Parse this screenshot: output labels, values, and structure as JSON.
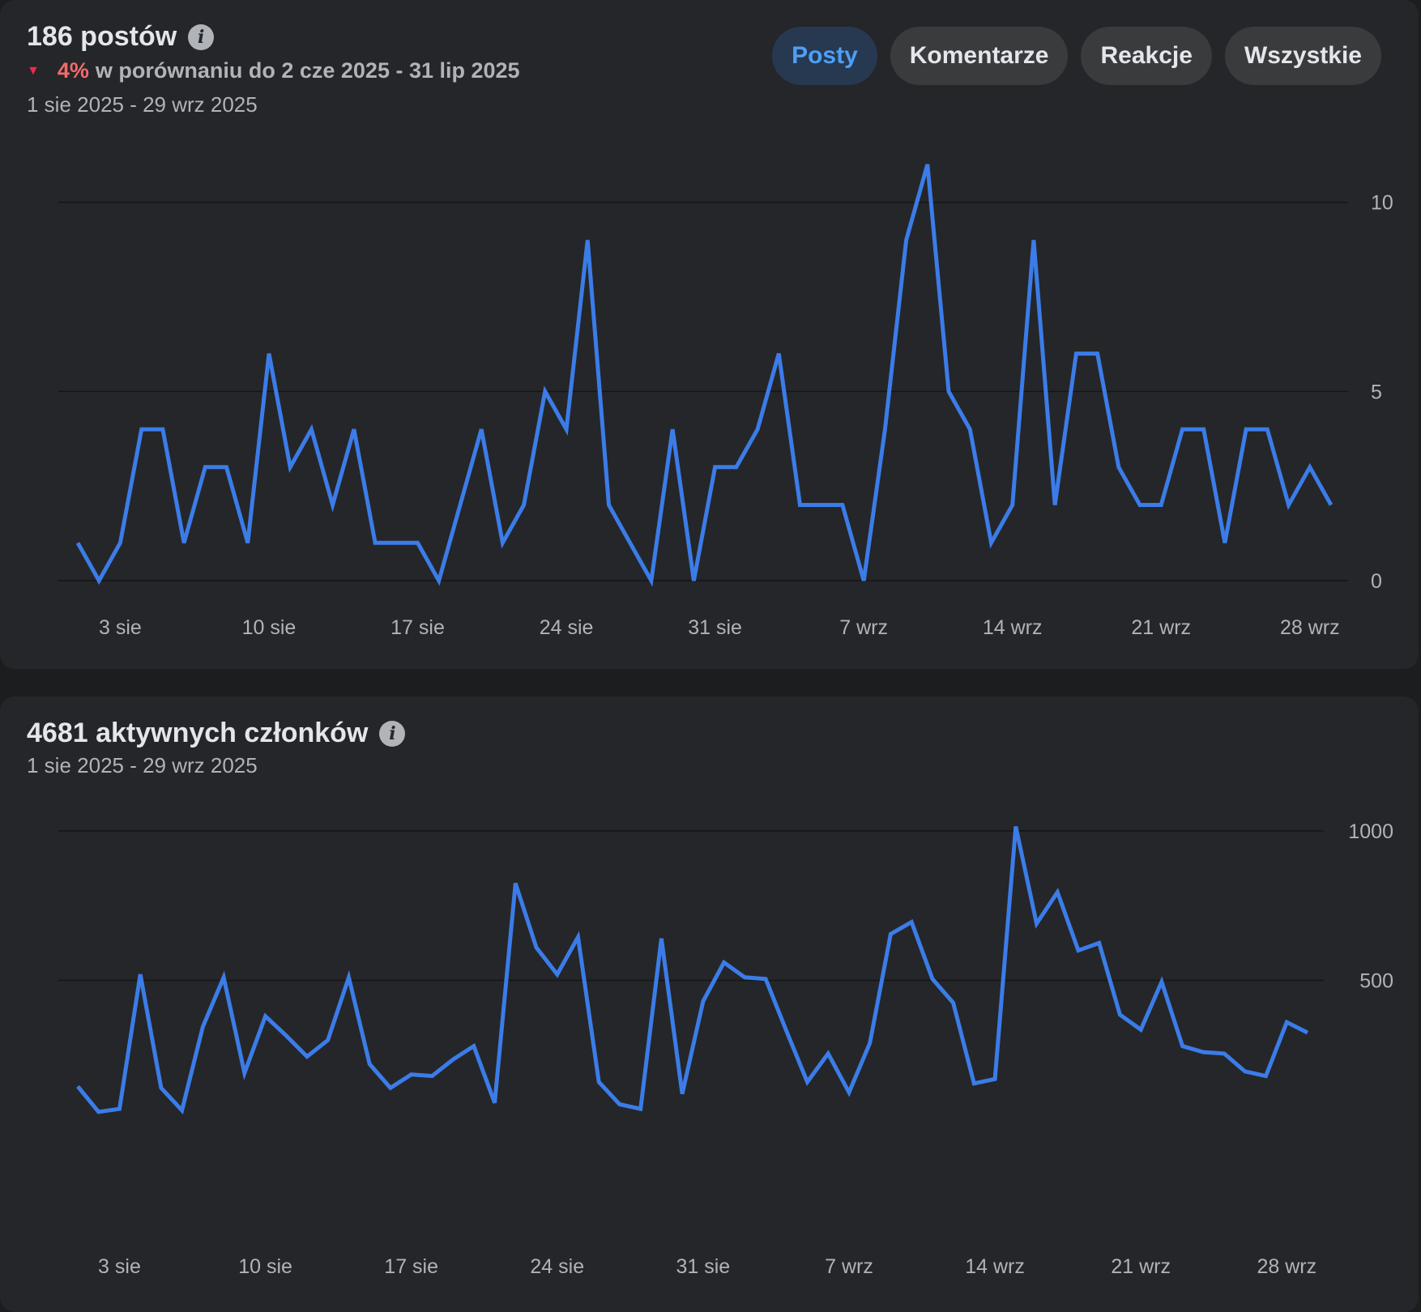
{
  "posts_card": {
    "title": "186 postów",
    "change_pct": "4%",
    "change_text": "w porównaniu do 2 cze 2025 - 31 lip 2025",
    "date_range": "1 sie 2025 - 29 wrz 2025",
    "tabs": [
      {
        "label": "Posty",
        "active": true
      },
      {
        "label": "Komentarze",
        "active": false
      },
      {
        "label": "Reakcje",
        "active": false
      },
      {
        "label": "Wszystkie",
        "active": false
      }
    ]
  },
  "members_card": {
    "title": "4681 aktywnych członków",
    "date_range": "1 sie 2025 - 29 wrz 2025"
  },
  "colors": {
    "line": "#3b7ce8",
    "active_tab_text": "#4e9ff5",
    "down_arrow": "#f02849"
  },
  "chart_data": [
    {
      "type": "line",
      "title": "186 postów",
      "x_start_label": "1 sie",
      "xticks": [
        {
          "label": "3 sie",
          "index": 2
        },
        {
          "label": "10 sie",
          "index": 9
        },
        {
          "label": "17 sie",
          "index": 16
        },
        {
          "label": "24 sie",
          "index": 23
        },
        {
          "label": "31 sie",
          "index": 30
        },
        {
          "label": "7 wrz",
          "index": 37
        },
        {
          "label": "14 wrz",
          "index": 44
        },
        {
          "label": "21 wrz",
          "index": 51
        },
        {
          "label": "28 wrz",
          "index": 58
        }
      ],
      "yticks": [
        0,
        5,
        10
      ],
      "ylim": [
        0,
        11
      ],
      "values": [
        1,
        0,
        1,
        4,
        4,
        1,
        3,
        3,
        1,
        6,
        3,
        4,
        2,
        4,
        1,
        1,
        1,
        0,
        2,
        4,
        1,
        2,
        5,
        4,
        9,
        2,
        1,
        0,
        4,
        0,
        3,
        3,
        4,
        6,
        2,
        2,
        2,
        0,
        4,
        9,
        11,
        5,
        4,
        1,
        2,
        9,
        2,
        6,
        6,
        3,
        2,
        2,
        4,
        4,
        1,
        4,
        4,
        2,
        3,
        2
      ],
      "grid": true
    },
    {
      "type": "line",
      "title": "4681 aktywnych członków",
      "x_start_label": "1 sie",
      "xticks": [
        {
          "label": "3 sie",
          "index": 2
        },
        {
          "label": "10 sie",
          "index": 9
        },
        {
          "label": "17 sie",
          "index": 16
        },
        {
          "label": "24 sie",
          "index": 23
        },
        {
          "label": "31 sie",
          "index": 30
        },
        {
          "label": "7 wrz",
          "index": 37
        },
        {
          "label": "14 wrz",
          "index": 44
        },
        {
          "label": "21 wrz",
          "index": 51
        },
        {
          "label": "28 wrz",
          "index": 58
        }
      ],
      "yticks": [
        500,
        1000
      ],
      "ylim": [
        0,
        1000
      ],
      "values": [
        145,
        60,
        70,
        520,
        140,
        65,
        345,
        510,
        190,
        380,
        315,
        245,
        300,
        510,
        220,
        140,
        185,
        180,
        235,
        280,
        90,
        825,
        610,
        520,
        645,
        160,
        85,
        70,
        640,
        120,
        430,
        560,
        510,
        505,
        330,
        160,
        255,
        125,
        290,
        655,
        695,
        505,
        425,
        155,
        170,
        1015,
        690,
        795,
        600,
        625,
        385,
        335,
        495,
        280,
        260,
        255,
        195,
        180,
        360,
        325
      ],
      "grid": true
    }
  ]
}
